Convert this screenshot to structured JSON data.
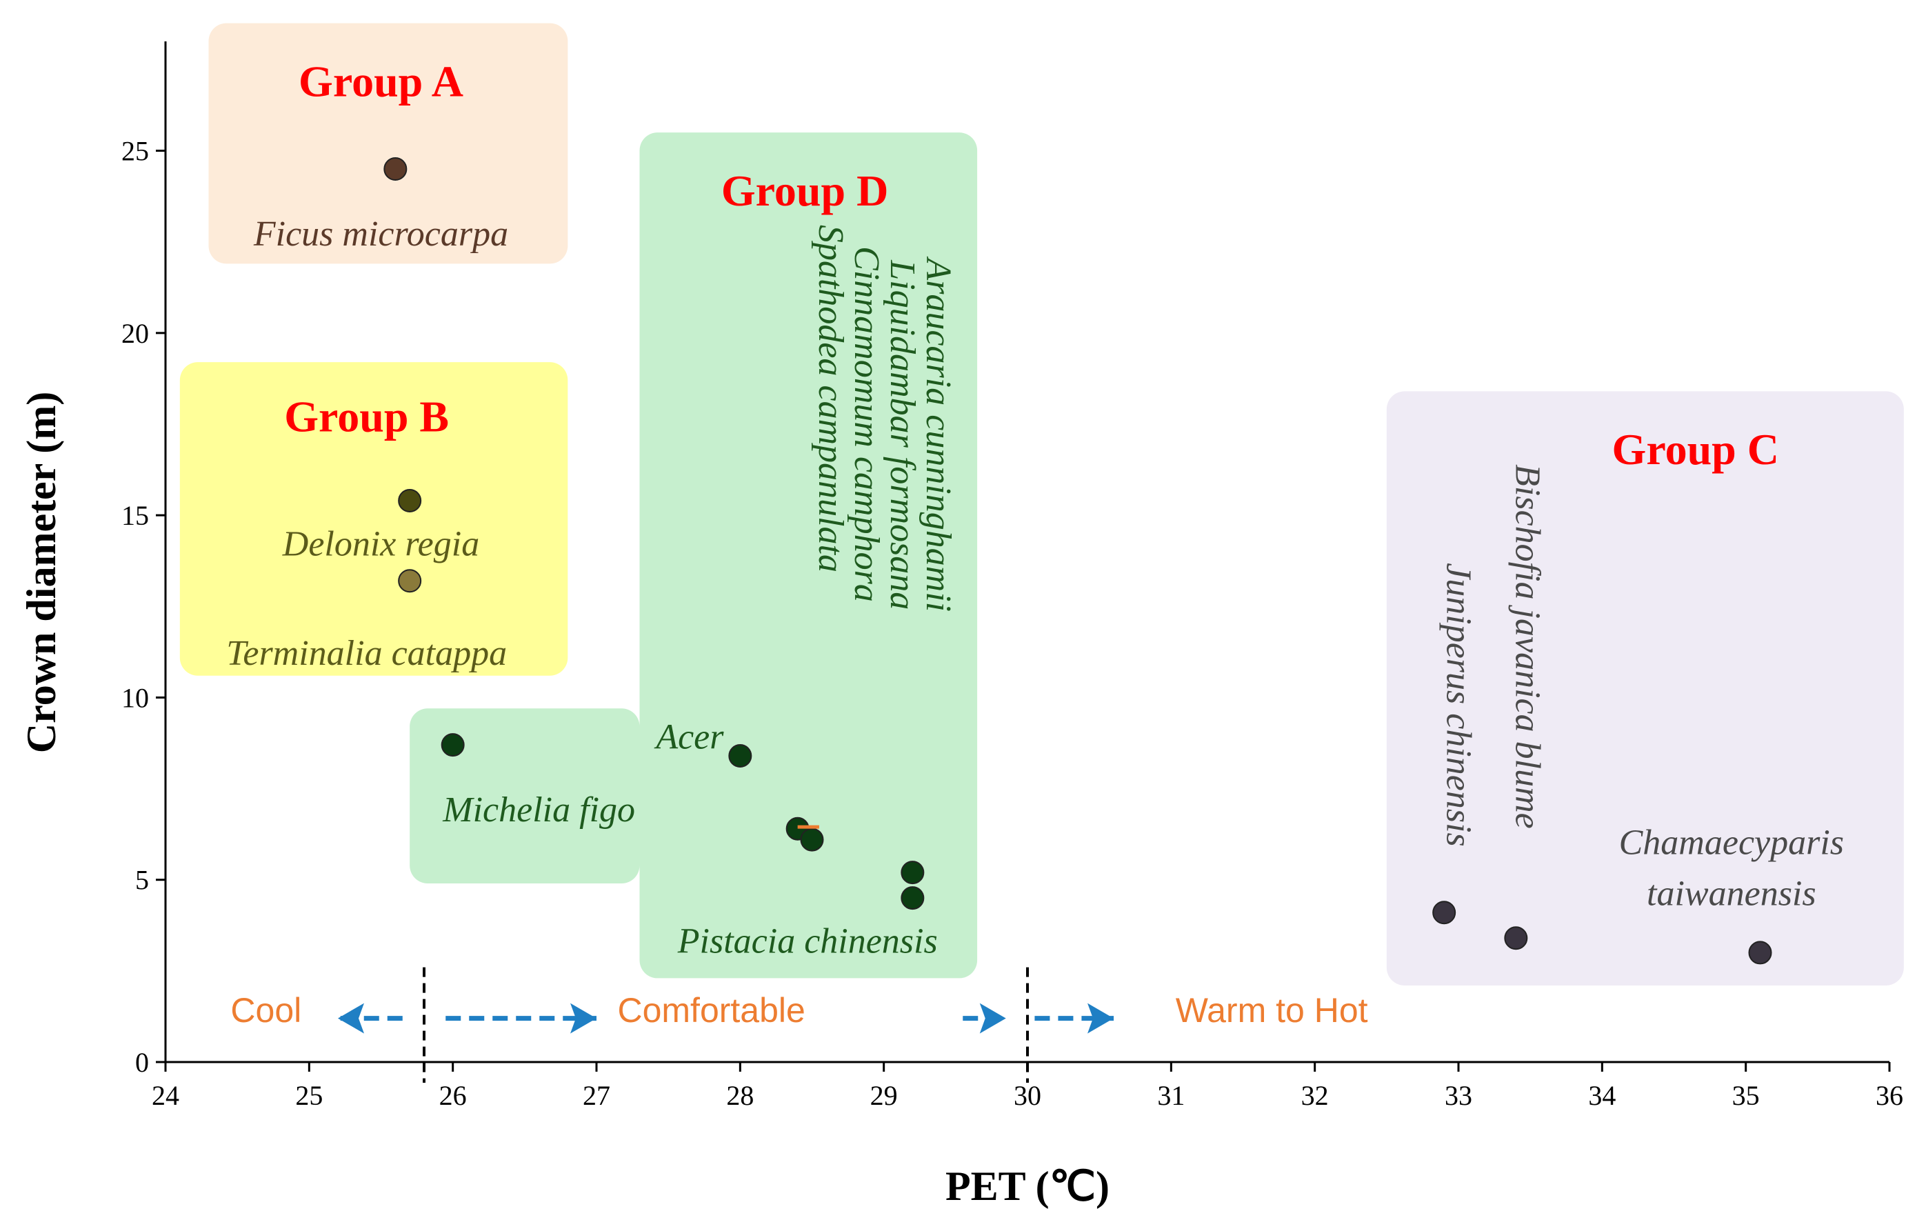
{
  "chart_data": {
    "type": "scatter",
    "title": "",
    "xlabel": "PET (℃)",
    "ylabel": "Crown diameter (m)",
    "xlim": [
      24,
      36
    ],
    "ylim": [
      0,
      28
    ],
    "xticks": [
      "24",
      "25",
      "26",
      "27",
      "28",
      "29",
      "30",
      "31",
      "32",
      "33",
      "34",
      "35",
      "36"
    ],
    "yticks": [
      "0",
      "5",
      "10",
      "15",
      "20",
      "25"
    ],
    "grid": false,
    "legend": "none",
    "points": [
      {
        "x": 25.6,
        "y": 24.5,
        "color": "#5b3a29"
      },
      {
        "x": 25.7,
        "y": 15.4,
        "color": "#4a4a10"
      },
      {
        "x": 25.7,
        "y": 13.2,
        "color": "#8a7a3a"
      },
      {
        "x": 26.0,
        "y": 8.7,
        "color": "#0b3d12"
      },
      {
        "x": 28.0,
        "y": 8.4,
        "color": "#0b3d12"
      },
      {
        "x": 28.4,
        "y": 6.4,
        "color": "#0b3d12"
      },
      {
        "x": 28.5,
        "y": 6.1,
        "color": "#0b3d12"
      },
      {
        "x": 29.2,
        "y": 5.2,
        "color": "#0b3d12"
      },
      {
        "x": 29.2,
        "y": 4.5,
        "color": "#0b3d12"
      },
      {
        "x": 32.9,
        "y": 4.1,
        "color": "#3a3440"
      },
      {
        "x": 33.4,
        "y": 3.4,
        "color": "#3a3440"
      },
      {
        "x": 35.1,
        "y": 3.0,
        "color": "#3a3440"
      }
    ],
    "groups": [
      {
        "name": "Group A",
        "color": "#fdebd9",
        "xrange": [
          24.3,
          26.8
        ],
        "yrange": [
          21.9,
          28.5
        ],
        "title_at": [
          25.5,
          26.5
        ],
        "species": [
          {
            "text": "Ficus microcarpa",
            "x": 25.5,
            "y": 22.4,
            "rotate": 0,
            "color": "#5b3a29"
          }
        ]
      },
      {
        "name": "Group B",
        "color": "#ffff99",
        "xrange": [
          24.1,
          26.8
        ],
        "yrange": [
          10.6,
          19.2
        ],
        "title_at": [
          25.4,
          17.3
        ],
        "species": [
          {
            "text": "Delonix regia",
            "x": 25.5,
            "y": 13.9,
            "rotate": 0,
            "color": "#5b5b1a"
          },
          {
            "text": "Terminalia catappa",
            "x": 25.4,
            "y": 10.9,
            "rotate": 0,
            "color": "#5b5b1a"
          }
        ]
      },
      {
        "name": "",
        "color": "#c6efce",
        "xrange": [
          25.7,
          27.3
        ],
        "yrange": [
          4.9,
          9.7
        ],
        "species": [
          {
            "text": "Michelia figo",
            "x": 26.6,
            "y": 6.6,
            "rotate": 0,
            "color": "#1e5a1e"
          }
        ]
      },
      {
        "name": "Group D",
        "color": "#c6efce",
        "xrange": [
          27.3,
          29.65
        ],
        "yrange": [
          2.3,
          25.5
        ],
        "title_at": [
          28.45,
          23.5
        ],
        "species": [
          {
            "text": "Acer",
            "x": 27.65,
            "y": 8.6,
            "rotate": 0,
            "color": "#1e5a1e"
          },
          {
            "text": "Araucaria cunninghamii",
            "x": 29.3,
            "y": 17.2,
            "rotate": 90,
            "color": "#1e5a1e"
          },
          {
            "text": "Liquidambar formosana",
            "x": 29.05,
            "y": 17.2,
            "rotate": 90,
            "color": "#1e5a1e"
          },
          {
            "text": "Cinnamomum camphora",
            "x": 28.8,
            "y": 17.5,
            "rotate": 90,
            "color": "#1e5a1e"
          },
          {
            "text": "Spathodea campanulata",
            "x": 28.55,
            "y": 18.2,
            "rotate": 90,
            "color": "#1e5a1e"
          },
          {
            "text": "Pistacia chinensis",
            "x": 28.47,
            "y": 3.0,
            "rotate": 0,
            "color": "#1e5a1e"
          }
        ]
      },
      {
        "name": "Group C",
        "color": "#efebf5",
        "xrange": [
          32.5,
          36.1
        ],
        "yrange": [
          2.1,
          18.4
        ],
        "title_at": [
          34.65,
          16.4
        ],
        "species": [
          {
            "text": "Bischofia javanica blume",
            "x": 33.4,
            "y": 11.4,
            "rotate": 90,
            "color": "#4a4a4a"
          },
          {
            "text": "Juniperus chinensis",
            "x": 32.92,
            "y": 9.8,
            "rotate": 90,
            "color": "#4a4a4a"
          },
          {
            "text": "Chamaecyparis",
            "x": 34.9,
            "y": 5.7,
            "rotate": 0,
            "color": "#4a4a4a"
          },
          {
            "text": "taiwanensis",
            "x": 34.9,
            "y": 4.3,
            "rotate": 0,
            "color": "#4a4a4a"
          }
        ]
      }
    ],
    "thresholds": [
      25.8,
      30.0
    ],
    "zones": [
      {
        "label": "Cool",
        "x": 24.7,
        "y": 1.1
      },
      {
        "label": "Comfortable",
        "x": 27.8,
        "y": 1.1
      },
      {
        "label": "Warm to Hot",
        "x": 31.7,
        "y": 1.1
      }
    ],
    "arrow_color": "#1f7fc4",
    "arrow_y": 1.2,
    "arrows": [
      [
        25.65,
        25.2
      ],
      [
        25.95,
        27.0
      ],
      [
        29.55,
        29.85
      ],
      [
        30.05,
        30.6
      ]
    ],
    "marker_color": "#ed7d31"
  }
}
